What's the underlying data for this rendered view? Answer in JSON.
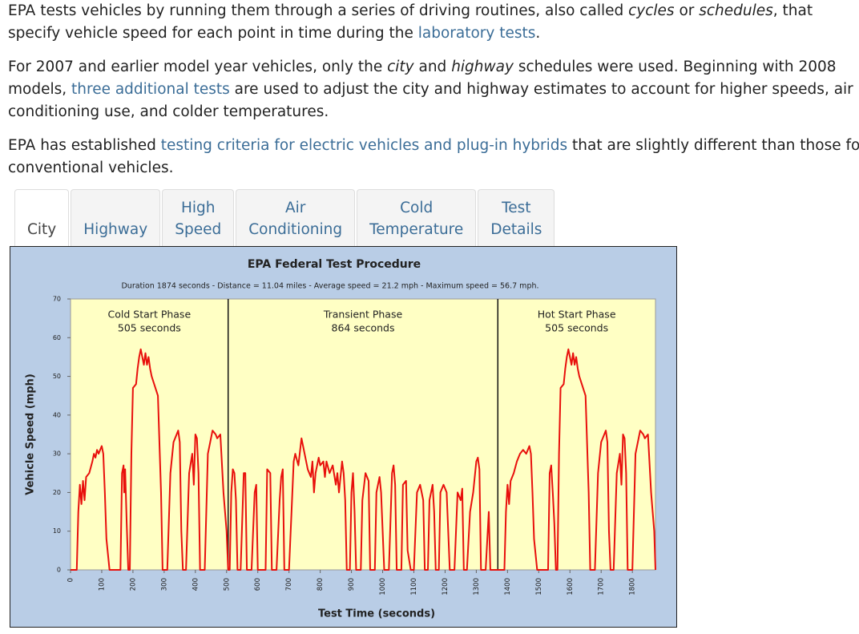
{
  "paragraphs": [
    [
      "EPA tests vehicles by running them through a series of driving routines, also called ",
      "cycles",
      " or ",
      "schedules",
      ", that specify vehicle speed for each point in time during the ",
      "laboratory tests",
      "."
    ],
    [
      "For 2007 and earlier model year vehicles, only the ",
      "city",
      " and ",
      "highway",
      " schedules were used. Beginning with 2008 models, ",
      "three additional tests",
      " are used to adjust the city and highway estimates to account for higher speeds, air conditioning use, and colder temperatures."
    ],
    [
      "EPA has established ",
      "testing criteria for electric vehicles and plug-in hybrids",
      " that are slightly different than those for conventional vehicles."
    ]
  ],
  "tabs": [
    "City",
    "Highway",
    "High Speed",
    "Air Conditioning",
    "Cold Temperature",
    "Test Details"
  ],
  "chart_data": {
    "type": "line",
    "title": "EPA Federal Test Procedure",
    "subtitle": "Duration 1874 seconds - Distance = 11.04 miles - Average speed = 21.2 mph - Maximum speed = 56.7 mph.",
    "x_label": "Test Time (seconds)",
    "y_label": "Vehicle Speed (mph)",
    "color": "#e8100c",
    "phase_boundaries": [
      505,
      1369
    ],
    "phases": [
      {
        "name": "Cold Start Phase",
        "duration": "505 seconds"
      },
      {
        "name": "Transient Phase",
        "duration": "864 seconds"
      },
      {
        "name": "Hot Start Phase",
        "duration": "505 seconds"
      }
    ],
    "xlim": [
      0,
      1874
    ],
    "ylim": [
      0,
      70
    ],
    "xticks": [
      0,
      100,
      200,
      300,
      400,
      500,
      600,
      700,
      800,
      900,
      1000,
      1100,
      1200,
      1300,
      1400,
      1500,
      1600,
      1700,
      1800
    ],
    "yticks": [
      0,
      10,
      20,
      30,
      40,
      50,
      60,
      70
    ],
    "x": [
      0,
      20,
      25,
      30,
      35,
      40,
      45,
      50,
      60,
      70,
      75,
      80,
      85,
      90,
      100,
      105,
      110,
      115,
      125,
      160,
      165,
      170,
      172,
      175,
      180,
      185,
      190,
      195,
      200,
      210,
      215,
      220,
      225,
      230,
      235,
      240,
      245,
      250,
      255,
      260,
      280,
      290,
      295,
      310,
      320,
      330,
      340,
      345,
      350,
      355,
      360,
      370,
      380,
      390,
      395,
      400,
      405,
      410,
      415,
      430,
      440,
      450,
      455,
      465,
      470,
      480,
      490,
      500,
      505,
      510,
      515,
      520,
      525,
      530,
      535,
      545,
      555,
      560,
      565,
      580,
      590,
      595,
      600,
      625,
      630,
      640,
      645,
      660,
      670,
      675,
      680,
      685,
      700,
      715,
      720,
      730,
      740,
      745,
      750,
      760,
      770,
      775,
      780,
      785,
      795,
      800,
      810,
      815,
      820,
      830,
      840,
      850,
      855,
      860,
      870,
      875,
      880,
      885,
      895,
      900,
      905,
      910,
      915,
      930,
      935,
      945,
      955,
      960,
      975,
      980,
      990,
      995,
      1000,
      1005,
      1020,
      1030,
      1035,
      1040,
      1045,
      1060,
      1065,
      1075,
      1080,
      1090,
      1100,
      1110,
      1120,
      1130,
      1135,
      1145,
      1150,
      1160,
      1165,
      1170,
      1180,
      1185,
      1195,
      1205,
      1215,
      1230,
      1240,
      1250,
      1255,
      1260,
      1270,
      1280,
      1290,
      1300,
      1305,
      1310,
      1315,
      1330,
      1340,
      1345,
      1369,
      1390,
      1395,
      1400,
      1405,
      1410,
      1420,
      1430,
      1440,
      1450,
      1460,
      1470,
      1475,
      1480,
      1485,
      1495,
      1530,
      1535,
      1540,
      1545,
      1550,
      1555,
      1560,
      1565,
      1570,
      1580,
      1585,
      1590,
      1595,
      1600,
      1605,
      1610,
      1615,
      1620,
      1625,
      1630,
      1650,
      1660,
      1665,
      1680,
      1690,
      1700,
      1710,
      1715,
      1720,
      1725,
      1730,
      1740,
      1750,
      1760,
      1765,
      1770,
      1775,
      1780,
      1785,
      1800,
      1810,
      1820,
      1825,
      1835,
      1840,
      1850,
      1860,
      1870,
      1874
    ],
    "values": [
      0,
      0,
      15,
      22,
      17,
      23,
      18,
      24,
      25,
      28,
      30,
      29,
      31,
      30,
      32,
      30,
      20,
      8,
      0,
      0,
      25,
      27,
      20,
      26,
      12,
      0,
      0,
      30,
      47,
      48,
      52,
      55,
      57,
      55,
      53,
      56,
      53,
      55,
      52,
      50,
      45,
      20,
      0,
      0,
      25,
      33,
      35,
      36,
      33,
      10,
      0,
      0,
      25,
      30,
      22,
      35,
      34,
      25,
      0,
      0,
      30,
      34,
      36,
      35,
      34,
      35,
      20,
      10,
      0,
      0,
      20,
      26,
      25,
      18,
      0,
      0,
      25,
      25,
      0,
      0,
      20,
      22,
      0,
      0,
      26,
      25,
      0,
      0,
      18,
      24,
      26,
      0,
      0,
      28,
      30,
      27,
      34,
      32,
      30,
      26,
      24,
      28,
      20,
      25,
      29,
      27,
      28,
      24,
      28,
      25,
      27,
      22,
      25,
      20,
      28,
      25,
      18,
      0,
      0,
      20,
      25,
      15,
      0,
      0,
      18,
      25,
      23,
      0,
      0,
      20,
      24,
      20,
      10,
      0,
      0,
      25,
      27,
      22,
      0,
      0,
      22,
      23,
      5,
      0,
      0,
      20,
      22,
      18,
      0,
      0,
      18,
      22,
      15,
      0,
      0,
      20,
      22,
      20,
      0,
      0,
      20,
      18,
      21,
      0,
      0,
      15,
      20,
      28,
      29,
      26,
      0,
      0,
      15,
      0,
      0,
      0,
      15,
      22,
      17,
      23,
      25,
      28,
      30,
      31,
      30,
      32,
      30,
      20,
      8,
      0,
      0,
      25,
      27,
      20,
      12,
      0,
      0,
      30,
      47,
      48,
      52,
      55,
      57,
      55,
      53,
      56,
      53,
      55,
      52,
      50,
      45,
      20,
      0,
      0,
      25,
      33,
      35,
      36,
      33,
      10,
      0,
      0,
      25,
      30,
      22,
      35,
      34,
      25,
      0,
      0,
      30,
      34,
      36,
      35,
      34,
      35,
      20,
      10,
      0
    ]
  }
}
